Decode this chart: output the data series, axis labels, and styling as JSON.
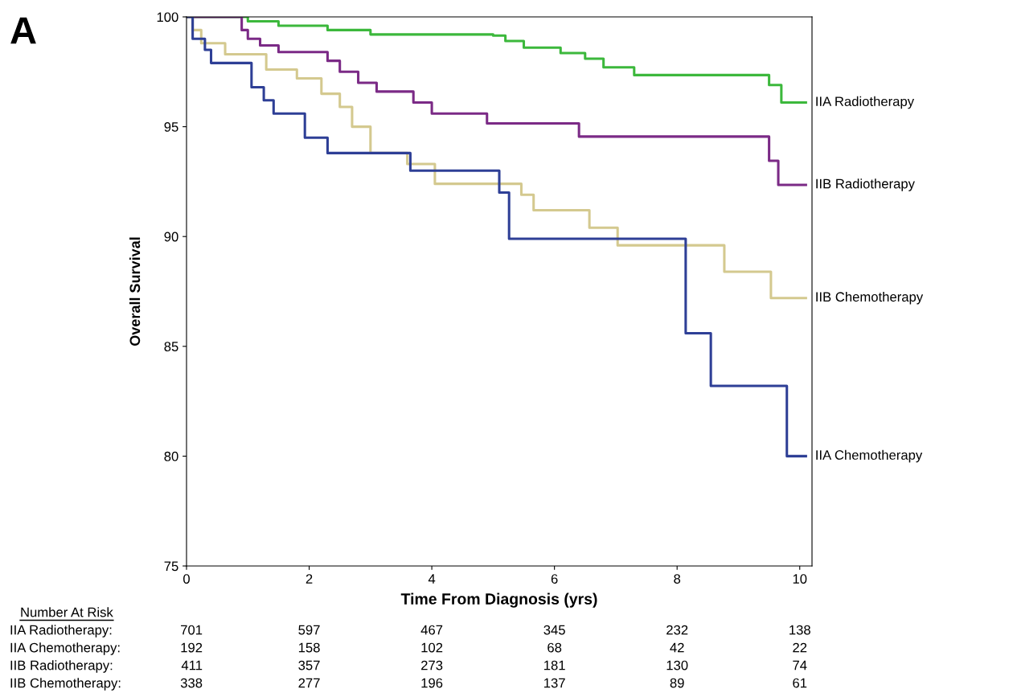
{
  "chart_data": {
    "type": "step",
    "xlabel": "Time From Diagnosis (yrs)",
    "ylabel": "Overall Survival",
    "xlim": [
      0,
      10.2
    ],
    "ylim": [
      75,
      100
    ],
    "xticks": [
      0,
      2,
      4,
      6,
      8,
      10
    ],
    "yticks": [
      75,
      80,
      85,
      90,
      95,
      100
    ],
    "grid": false,
    "legend": false,
    "series": [
      {
        "name": "IIA Radiotherapy",
        "color": "#3cb83c",
        "x": [
          0,
          1.0,
          1.5,
          2.3,
          3.0,
          5.0,
          5.2,
          5.5,
          6.1,
          6.5,
          6.8,
          7.3,
          9.5,
          9.7,
          10.1
        ],
        "values": [
          100,
          99.8,
          99.6,
          99.4,
          99.2,
          99.15,
          98.9,
          98.6,
          98.35,
          98.1,
          97.7,
          97.35,
          96.9,
          96.1,
          96.1
        ]
      },
      {
        "name": "IIB Radiotherapy",
        "color": "#7b2a86",
        "x": [
          0,
          0.9,
          1.0,
          1.2,
          1.5,
          2.3,
          2.5,
          2.8,
          3.1,
          3.7,
          4.0,
          4.9,
          6.4,
          9.5,
          9.65,
          10.1
        ],
        "values": [
          100,
          99.4,
          99.0,
          98.7,
          98.4,
          98.0,
          97.5,
          97.0,
          96.6,
          96.1,
          95.6,
          95.15,
          94.55,
          93.45,
          92.35,
          92.35
        ]
      },
      {
        "name": "IIB Chemotherapy",
        "color": "#d4c98f",
        "x": [
          0,
          0.1,
          0.24,
          0.63,
          1.3,
          1.8,
          2.2,
          2.5,
          2.7,
          3.0,
          3.6,
          4.05,
          5.46,
          5.66,
          6.57,
          7.03,
          8.77,
          9.53,
          10.1
        ],
        "values": [
          100,
          99.4,
          98.8,
          98.3,
          97.6,
          97.2,
          96.5,
          95.9,
          95.0,
          93.8,
          93.3,
          92.4,
          91.9,
          91.2,
          90.4,
          89.6,
          88.4,
          87.2,
          87.2
        ]
      },
      {
        "name": "IIA Chemotherapy",
        "color": "#2e3f96",
        "x": [
          0,
          0.1,
          0.3,
          0.4,
          1.06,
          1.26,
          1.42,
          1.93,
          2.3,
          3.65,
          5.1,
          5.26,
          8.14,
          8.55,
          9.79,
          10.1
        ],
        "values": [
          100,
          99.0,
          98.5,
          97.9,
          96.8,
          96.2,
          95.6,
          94.5,
          93.8,
          93.0,
          92.0,
          89.9,
          85.6,
          83.2,
          80.0,
          80.0
        ]
      }
    ],
    "annotations": [
      "A",
      "Number At Risk",
      "IIA Radiotherapy:",
      "701",
      "597",
      "467",
      "345",
      "232",
      "138",
      "IIA Chemotherapy:",
      "192",
      "158",
      "102",
      "68",
      "42",
      "22",
      "IIB Radiotherapy:",
      "411",
      "357",
      "273",
      "181",
      "130",
      "74",
      "IIB Chemotherapy:",
      "338",
      "277",
      "196",
      "137",
      "89",
      "61"
    ]
  }
}
